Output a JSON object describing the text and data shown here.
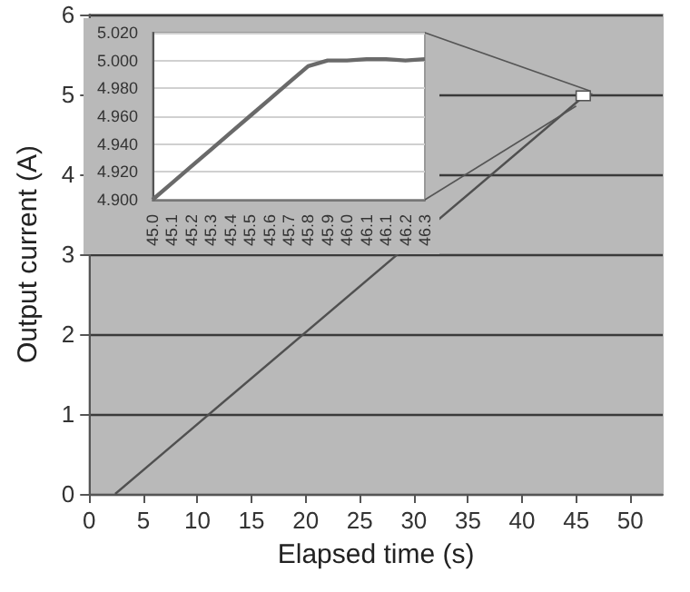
{
  "chart_data": [
    {
      "type": "line",
      "xlabel": "Elapsed time (s)",
      "ylabel": "Output current (A)",
      "x": [
        2.4,
        45.9,
        46.5
      ],
      "series": [
        {
          "color": "#505050",
          "values": [
            0,
            5,
            5
          ]
        }
      ],
      "xlim": [
        0,
        53
      ],
      "xticks": [
        0,
        5,
        10,
        15,
        20,
        25,
        30,
        35,
        40,
        45,
        50
      ],
      "ylim": [
        0,
        6
      ],
      "yticks": [
        0,
        1,
        2,
        3,
        4,
        5,
        6
      ],
      "grid": "y",
      "marker": "none",
      "line_style": "solid"
    },
    {
      "type": "line",
      "categories": [
        "45.0",
        "45.1",
        "45.2",
        "45.3",
        "45.4",
        "45.5",
        "45.6",
        "45.7",
        "45.8",
        "45.9",
        "46.0",
        "46.1",
        "46.1",
        "46.2",
        "46.3"
      ],
      "series": [
        {
          "color": "#6a6a6a",
          "values": [
            4.9,
            4.912,
            4.924,
            4.936,
            4.948,
            4.96,
            4.972,
            4.984,
            4.996,
            5.0,
            5.0,
            5.001,
            5.001,
            5.0,
            5.001
          ]
        }
      ],
      "ylim": [
        4.9,
        5.02
      ],
      "yticks": [
        {
          "value": 4.9,
          "label": "4.900"
        },
        {
          "value": 4.92,
          "label": "4.920"
        },
        {
          "value": 4.94,
          "label": "4.940"
        },
        {
          "value": 4.96,
          "label": "4.960"
        },
        {
          "value": 4.98,
          "label": "4.980"
        },
        {
          "value": 5.0,
          "label": "5.000"
        },
        {
          "value": 5.02,
          "label": "5.020"
        }
      ],
      "grid": "y",
      "marker": "none",
      "line_style": "solid"
    }
  ]
}
